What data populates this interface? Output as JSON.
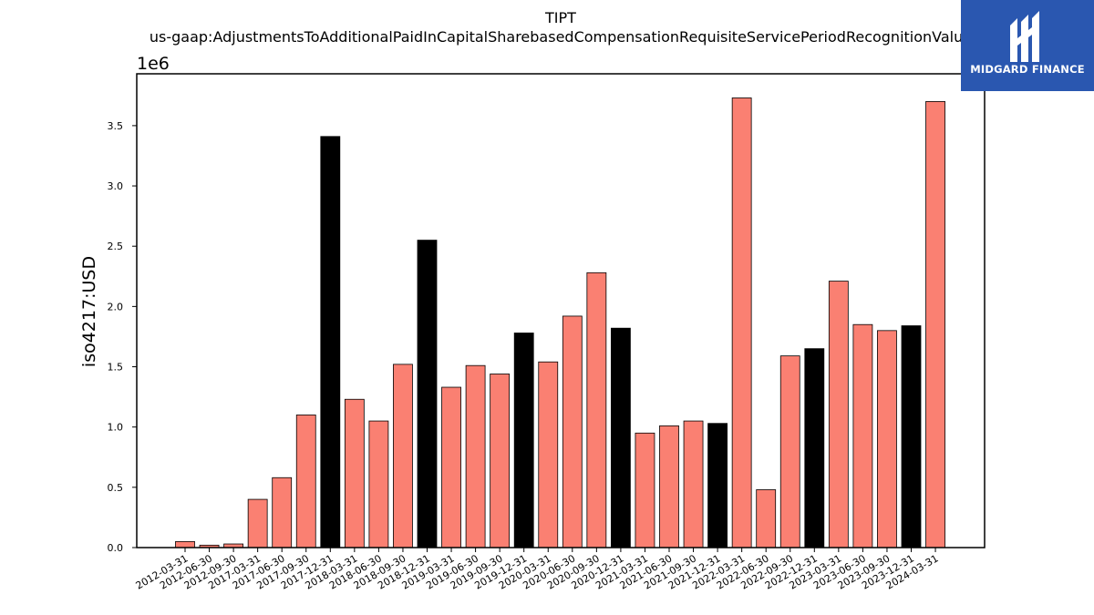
{
  "chart_data": {
    "type": "bar",
    "title": "TIPT",
    "subtitle": "us-gaap:AdjustmentsToAdditionalPaidInCapitalSharebasedCompensationRequisiteServicePeriodRecognitionValue",
    "ylabel": "iso4217:USD",
    "xlabel": "",
    "offset_label": "1e6",
    "ylim": [
      0,
      3.93
    ],
    "yticks": [
      0.0,
      0.5,
      1.0,
      1.5,
      2.0,
      2.5,
      3.0,
      3.5
    ],
    "ytick_labels": [
      "0.0",
      "0.5",
      "1.0",
      "1.5",
      "2.0",
      "2.5",
      "3.0",
      "3.5"
    ],
    "grid": false,
    "categories": [
      "2012-03-31",
      "2012-06-30",
      "2012-09-30",
      "2017-03-31",
      "2017-06-30",
      "2017-09-30",
      "2017-12-31",
      "2018-03-31",
      "2018-06-30",
      "2018-09-30",
      "2018-12-31",
      "2019-03-31",
      "2019-06-30",
      "2019-09-30",
      "2019-12-31",
      "2020-03-31",
      "2020-06-30",
      "2020-09-30",
      "2020-12-31",
      "2021-03-31",
      "2021-06-30",
      "2021-09-30",
      "2021-12-31",
      "2022-03-31",
      "2022-06-30",
      "2022-09-30",
      "2022-12-31",
      "2023-03-31",
      "2023-06-30",
      "2023-09-30",
      "2023-12-31",
      "2024-03-31"
    ],
    "values": [
      0.05,
      0.02,
      0.03,
      0.4,
      0.58,
      1.1,
      3.41,
      1.23,
      1.05,
      1.52,
      2.55,
      1.33,
      1.51,
      1.44,
      1.78,
      1.54,
      1.92,
      2.28,
      1.82,
      0.95,
      1.01,
      1.05,
      1.03,
      3.73,
      0.48,
      1.59,
      1.65,
      2.21,
      1.85,
      1.8,
      1.84,
      3.7
    ],
    "bar_colors": [
      "salmon",
      "salmon",
      "salmon",
      "salmon",
      "salmon",
      "salmon",
      "black",
      "salmon",
      "salmon",
      "salmon",
      "black",
      "salmon",
      "salmon",
      "salmon",
      "black",
      "salmon",
      "salmon",
      "salmon",
      "black",
      "salmon",
      "salmon",
      "salmon",
      "black",
      "salmon",
      "salmon",
      "salmon",
      "black",
      "salmon",
      "salmon",
      "salmon",
      "black",
      "salmon"
    ],
    "colors": {
      "salmon": "#fa8072",
      "black": "#000000",
      "edge": "#000000"
    }
  },
  "logo": {
    "text": "MIDGARD FINANCE",
    "background": "#2a57b0"
  }
}
